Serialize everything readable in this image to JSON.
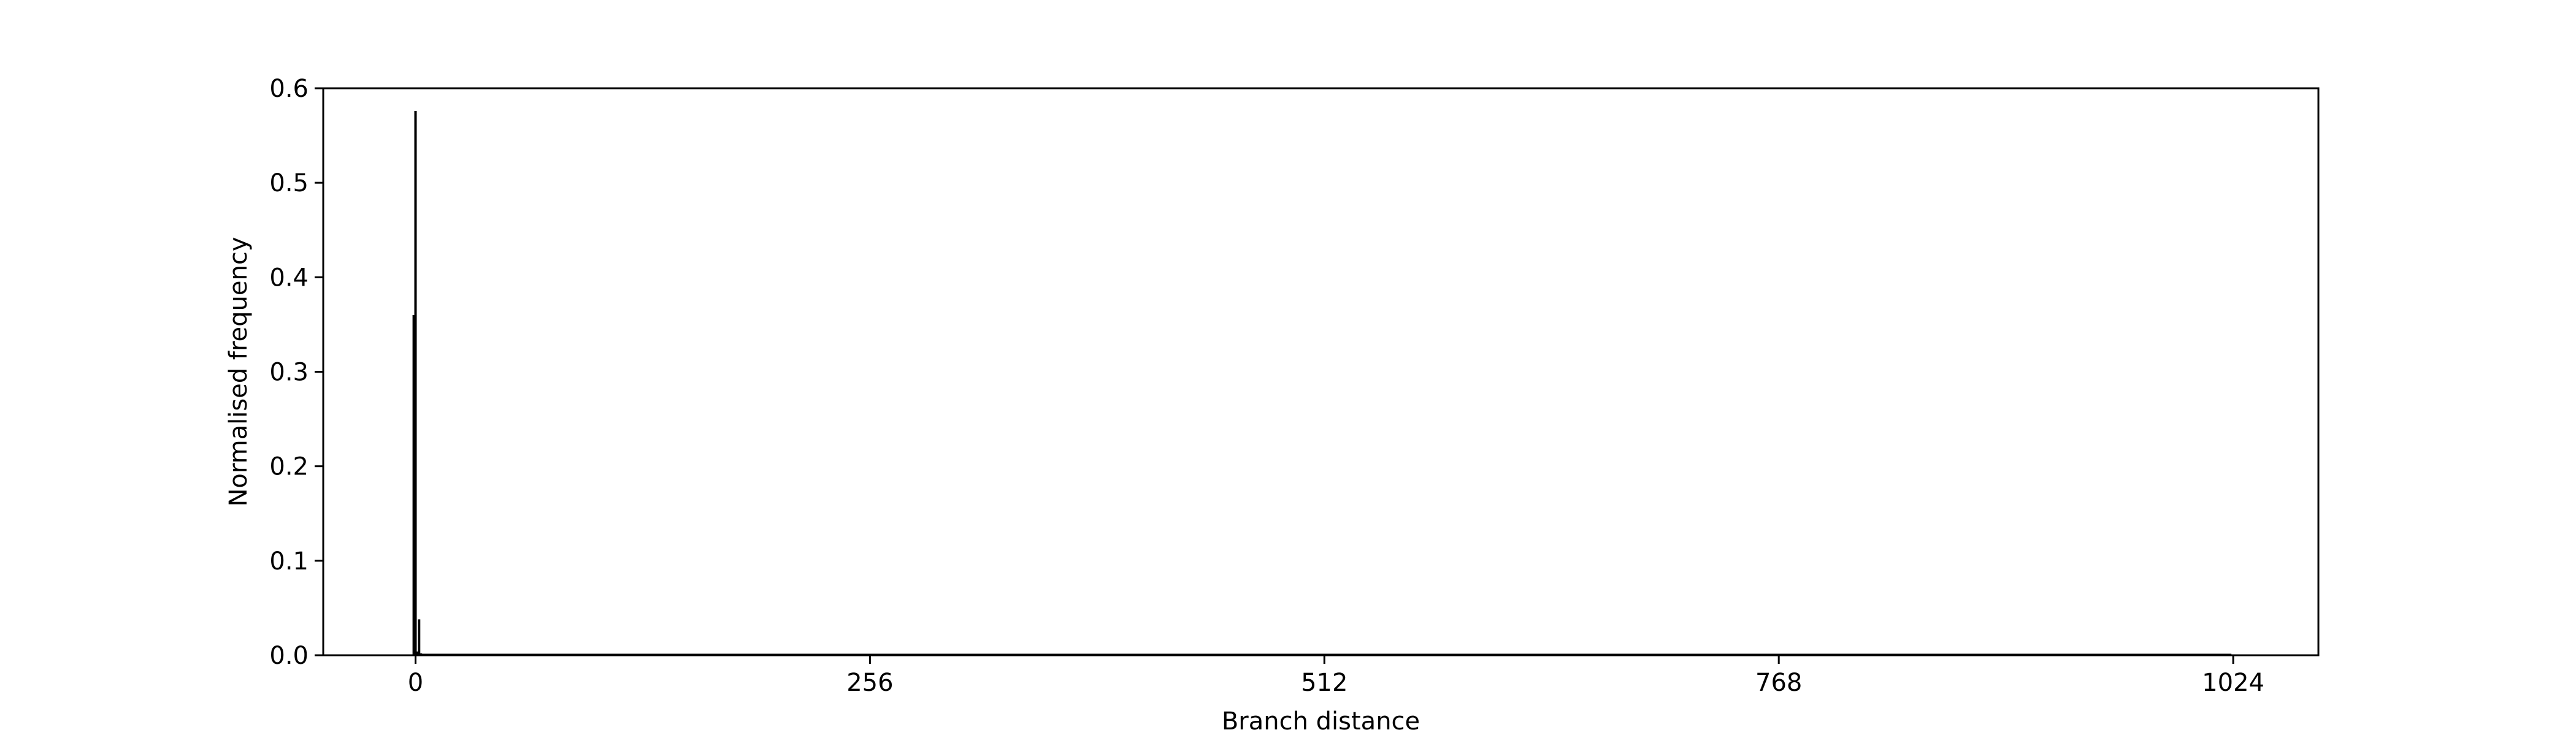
{
  "chart_data": {
    "type": "bar",
    "title": "",
    "xlabel": "Branch distance",
    "ylabel": "Normalised frequency",
    "xlim": [
      -52,
      1072
    ],
    "ylim": [
      0,
      0.6
    ],
    "xticks": [
      0,
      256,
      512,
      768,
      1024
    ],
    "xtick_labels": [
      "0",
      "256",
      "512",
      "768",
      "1024"
    ],
    "yticks": [
      0.0,
      0.1,
      0.2,
      0.3,
      0.4,
      0.5,
      0.6
    ],
    "ytick_labels": [
      "0.0",
      "0.1",
      "0.2",
      "0.3",
      "0.4",
      "0.5",
      "0.6"
    ],
    "grid": false,
    "legend": "none",
    "bar_color": "#000000",
    "series": [
      {
        "x": [
          -1,
          0,
          1,
          2,
          3
        ],
        "values": [
          0.36,
          0.576,
          0.004,
          0.038,
          0.002
        ]
      }
    ]
  }
}
